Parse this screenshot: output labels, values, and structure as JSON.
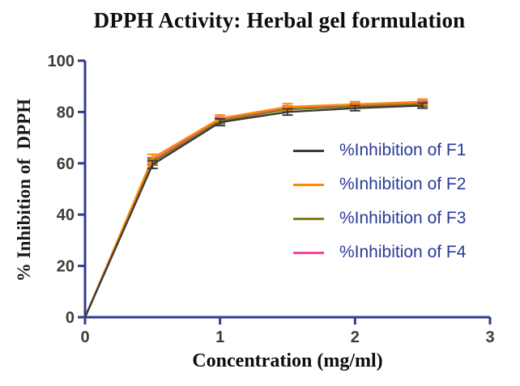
{
  "chart_data": {
    "type": "line",
    "title": "DPPH Activity: Herbal gel formulation",
    "xlabel": "Concentration (mg/ml)",
    "ylabel": "% Inhibition of  DPPH",
    "x": [
      0,
      0.5,
      1,
      1.5,
      2,
      2.5
    ],
    "series": [
      {
        "name": "%Inhibition of F1",
        "color": "#3b3b3b",
        "values": [
          0,
          59.5,
          76,
          80,
          81.5,
          82.5
        ],
        "errors": [
          0,
          1.5,
          1.3,
          1.2,
          1.0,
          1.0
        ]
      },
      {
        "name": "%Inhibition of F2",
        "color": "#ff8800",
        "values": [
          0,
          62,
          77.5,
          82,
          83,
          84
        ],
        "errors": [
          0,
          1.5,
          1.3,
          1.2,
          1.0,
          1.0
        ]
      },
      {
        "name": "%Inhibition of F3",
        "color": "#848018",
        "values": [
          0,
          60.5,
          76.5,
          81,
          82.2,
          83
        ],
        "errors": [
          0,
          1.2,
          1.0,
          0.8,
          0.7,
          0.8
        ]
      },
      {
        "name": "%Inhibition of F4",
        "color": "#ff3fa0",
        "values": [
          0,
          61,
          77,
          81.5,
          82.6,
          83.5
        ],
        "errors": [
          0,
          1.2,
          1.0,
          0.8,
          0.7,
          0.8
        ]
      }
    ],
    "xlim": [
      0,
      3
    ],
    "ylim": [
      0,
      100
    ],
    "xticks": [
      0,
      1,
      2,
      3
    ],
    "yticks": [
      0,
      20,
      40,
      60,
      80,
      100
    ],
    "grid": false,
    "legend_position": "right-inside",
    "axis_color": "#333c8e",
    "tick_label_color": "#3d3d3d",
    "legend_text_color": "#2b3a9a",
    "draw_order": [
      3,
      2,
      1,
      0
    ]
  }
}
